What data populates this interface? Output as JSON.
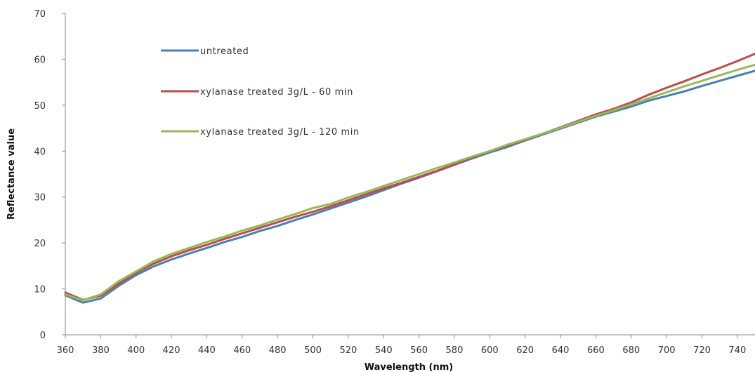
{
  "chart_data": {
    "type": "line",
    "xlabel": "Wavelength (nm)",
    "ylabel": "Reflectance value",
    "xlim": [
      360,
      750
    ],
    "ylim": [
      0,
      70
    ],
    "x_ticks": [
      360,
      380,
      400,
      420,
      440,
      460,
      480,
      500,
      520,
      540,
      560,
      580,
      600,
      620,
      640,
      660,
      680,
      700,
      720,
      740
    ],
    "y_ticks": [
      0,
      10,
      20,
      30,
      40,
      50,
      60,
      70
    ],
    "grid": false,
    "legend_position": "top-left",
    "x": [
      360,
      370,
      380,
      390,
      400,
      410,
      420,
      430,
      440,
      450,
      460,
      470,
      480,
      490,
      500,
      510,
      520,
      530,
      540,
      550,
      560,
      570,
      580,
      590,
      600,
      610,
      620,
      630,
      640,
      650,
      660,
      670,
      680,
      690,
      700,
      710,
      720,
      730,
      740,
      750
    ],
    "series": [
      {
        "name": "untreated",
        "color": "#4a7ebb",
        "values": [
          8.6,
          7.0,
          7.9,
          10.6,
          13.0,
          14.9,
          16.4,
          17.7,
          18.9,
          20.2,
          21.3,
          22.6,
          23.7,
          25.0,
          26.2,
          27.5,
          28.8,
          30.1,
          31.5,
          32.9,
          34.2,
          35.6,
          37.0,
          38.4,
          39.7,
          40.9,
          42.3,
          43.6,
          44.9,
          46.2,
          47.5,
          48.6,
          49.7,
          51.0,
          52.0,
          53.0,
          54.2,
          55.3,
          56.4,
          57.5
        ]
      },
      {
        "name": "xylanase treated 3g/L - 60 min",
        "color": "#be4b48",
        "values": [
          9.2,
          7.6,
          8.5,
          11.1,
          13.5,
          15.5,
          17.1,
          18.4,
          19.6,
          20.9,
          22.1,
          23.3,
          24.5,
          25.7,
          26.8,
          28.0,
          29.3,
          30.6,
          31.9,
          33.1,
          34.4,
          35.7,
          37.1,
          38.6,
          40.0,
          41.2,
          42.5,
          43.8,
          45.2,
          46.6,
          48.0,
          49.2,
          50.6,
          52.3,
          53.8,
          55.2,
          56.7,
          58.1,
          59.6,
          61.2
        ]
      },
      {
        "name": "xylanase treated 3g/L - 120 min",
        "color": "#98b954",
        "values": [
          8.8,
          7.5,
          8.8,
          11.6,
          13.8,
          16.0,
          17.6,
          18.9,
          20.2,
          21.4,
          22.7,
          23.8,
          25.1,
          26.3,
          27.6,
          28.5,
          29.9,
          31.1,
          32.4,
          33.7,
          35.0,
          36.3,
          37.5,
          38.8,
          40.0,
          41.4,
          42.6,
          43.8,
          45.1,
          46.4,
          47.7,
          48.9,
          50.2,
          51.5,
          52.8,
          54.1,
          55.3,
          56.5,
          57.7,
          58.8
        ]
      }
    ]
  }
}
